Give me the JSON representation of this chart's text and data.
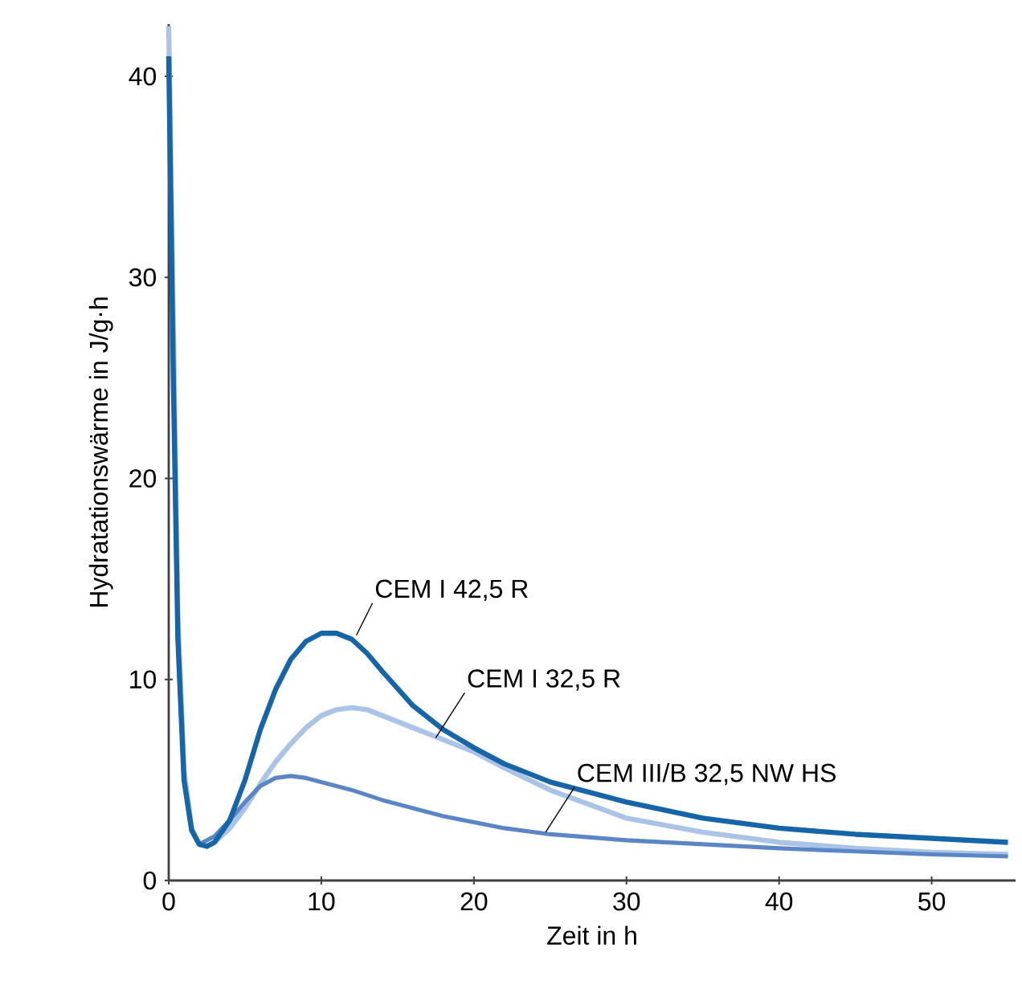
{
  "chart_data": {
    "type": "line",
    "xlabel": "Zeit in h",
    "ylabel": "Hydratationswärme in J/g·h",
    "xlim": [
      0,
      55.5
    ],
    "ylim": [
      0,
      42.6
    ],
    "xticks": [
      0,
      10,
      20,
      30,
      40,
      50
    ],
    "yticks": [
      0,
      10,
      20,
      30,
      40
    ],
    "series": [
      {
        "color": "#a9c4e6",
        "x": [
          0,
          0.3,
          0.6,
          1,
          1.5,
          2,
          2.5,
          3,
          4,
          5,
          6,
          7,
          8,
          9,
          10,
          11,
          12,
          13,
          14,
          16,
          18,
          20,
          22,
          25,
          30,
          35,
          40,
          45,
          50,
          55
        ],
        "values": [
          42.5,
          null,
          13,
          5.5,
          2.6,
          1.8,
          1.7,
          1.9,
          2.6,
          3.6,
          4.8,
          5.9,
          6.8,
          7.6,
          8.2,
          8.5,
          8.6,
          8.5,
          8.2,
          7.6,
          7,
          6.4,
          5.6,
          4.5,
          3.1,
          2.4,
          1.9,
          1.6,
          1.4,
          1.3
        ]
      },
      {
        "color": "#5b86c5",
        "x": [
          0,
          0.3,
          0.6,
          1,
          1.5,
          2,
          3,
          4,
          5,
          6,
          7,
          8,
          9,
          10,
          12,
          14,
          16,
          18,
          20,
          22,
          25,
          30,
          35,
          40,
          45,
          50,
          55
        ],
        "values": [
          41,
          25,
          12,
          5,
          2.5,
          1.8,
          2.2,
          3,
          3.9,
          4.7,
          5.1,
          5.2,
          5.1,
          4.9,
          4.5,
          4,
          3.6,
          3.2,
          2.9,
          2.6,
          2.3,
          2,
          1.8,
          1.6,
          1.45,
          1.3,
          1.2
        ]
      },
      {
        "color": "#1565a8",
        "x": [
          0,
          0.3,
          0.6,
          1,
          1.5,
          2,
          2.5,
          3,
          4,
          5,
          6,
          7,
          8,
          9,
          10,
          11,
          12,
          13,
          14,
          16,
          18,
          20,
          22,
          25,
          30,
          35,
          40,
          45,
          50,
          55
        ],
        "values": [
          41,
          25,
          12,
          5,
          2.5,
          1.8,
          1.7,
          1.9,
          3,
          5,
          7.5,
          9.5,
          11,
          11.9,
          12.3,
          12.3,
          12,
          11.3,
          10.4,
          8.7,
          7.5,
          6.6,
          5.8,
          4.9,
          3.9,
          3.1,
          2.6,
          2.3,
          2.1,
          1.9
        ]
      }
    ],
    "annotations": [
      {
        "text": "CEM I 42,5 R",
        "x": 12.3,
        "y": 12.2
      },
      {
        "text": "CEM I 32,5 R",
        "x": 17.5,
        "y": 7.1
      },
      {
        "text": "CEM III/B 32,5 NW HS",
        "x": 24.7,
        "y": 2.4
      }
    ]
  }
}
